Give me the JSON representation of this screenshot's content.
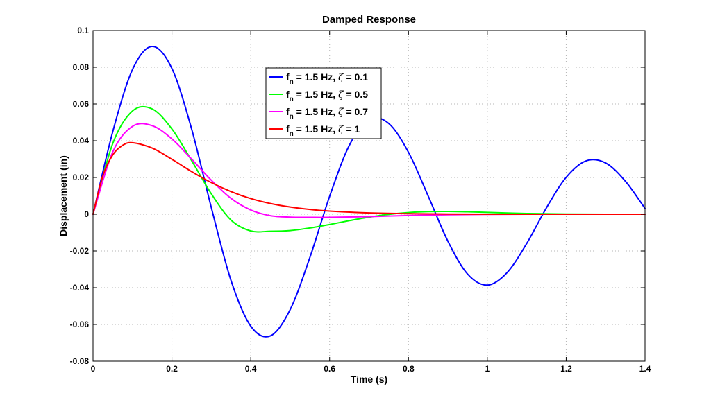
{
  "chart_data": {
    "type": "line",
    "title": "Damped Response",
    "xlabel": "Time (s)",
    "ylabel": "Displacement (in)",
    "xlim": [
      0,
      1.4
    ],
    "ylim": [
      -0.08,
      0.1
    ],
    "xticks": [
      0,
      0.2,
      0.4,
      0.6,
      0.8,
      1,
      1.2,
      1.4
    ],
    "xtick_labels": [
      "0",
      "0.2",
      "0.4",
      "0.6",
      "0.8",
      "1",
      "1.2",
      "1.4"
    ],
    "yticks": [
      -0.08,
      -0.06,
      -0.04,
      -0.02,
      0,
      0.02,
      0.04,
      0.06,
      0.08,
      0.1
    ],
    "ytick_labels": [
      "-0.08",
      "-0.06",
      "-0.04",
      "-0.02",
      "0",
      "0.02",
      "0.04",
      "0.06",
      "0.08",
      "0.1"
    ],
    "grid": true,
    "legend_position": "top-center",
    "series": [
      {
        "name": "f_n = 1.5 Hz, ζ = 0.1",
        "legend": {
          "main": "f",
          "sub": "n",
          "mid": " = 1.5 Hz, ",
          "greek": "ζ",
          "tail": " = 0.1"
        },
        "color": "#0000ff",
        "x": [
          0,
          0.05,
          0.1,
          0.15,
          0.2,
          0.25,
          0.3,
          0.35,
          0.4,
          0.45,
          0.5,
          0.55,
          0.6,
          0.65,
          0.7,
          0.75,
          0.8,
          0.85,
          0.9,
          0.95,
          1.0,
          1.05,
          1.1,
          1.15,
          1.2,
          1.25,
          1.3,
          1.35,
          1.4
        ],
        "y": [
          0,
          0.0449,
          0.0787,
          0.0913,
          0.0793,
          0.0464,
          0.0036,
          -0.0361,
          -0.0609,
          -0.0662,
          -0.0519,
          -0.0235,
          0.0097,
          0.0375,
          0.0516,
          0.0494,
          0.0337,
          0.0099,
          -0.0147,
          -0.0326,
          -0.0386,
          -0.0318,
          -0.0159,
          0.0035,
          0.0201,
          0.029,
          0.0279,
          0.018,
          0.0031
        ]
      },
      {
        "name": "f_n = 1.5 Hz, ζ = 0.5",
        "legend": {
          "main": "f",
          "sub": "n",
          "mid": " = 1.5 Hz, ",
          "greek": "ζ",
          "tail": " = 0.5"
        },
        "color": "#00ff00",
        "x": [
          0,
          0.05,
          0.1,
          0.15,
          0.2,
          0.25,
          0.3,
          0.35,
          0.4,
          0.45,
          0.5,
          0.55,
          0.6,
          0.65,
          0.7,
          0.75,
          0.8,
          0.85,
          0.9,
          0.95,
          1.0,
          1.1,
          1.2,
          1.3,
          1.4
        ],
        "y": [
          0,
          0.0385,
          0.0562,
          0.0573,
          0.0464,
          0.0292,
          0.0111,
          -0.0032,
          -0.0091,
          -0.0093,
          -0.0089,
          -0.0075,
          -0.0056,
          -0.0035,
          -0.0016,
          -0.0001,
          0.0009,
          0.0014,
          0.0015,
          0.0013,
          0.001,
          0.0004,
          0.0001,
          0,
          0
        ]
      },
      {
        "name": "f_n = 1.5 Hz, ζ = 0.7",
        "legend": {
          "main": "f",
          "sub": "n",
          "mid": " = 1.5 Hz, ",
          "greek": "ζ",
          "tail": " = 0.7"
        },
        "color": "#ff00ff",
        "x": [
          0,
          0.05,
          0.1,
          0.15,
          0.2,
          0.25,
          0.3,
          0.35,
          0.4,
          0.45,
          0.5,
          0.55,
          0.6,
          0.7,
          0.8,
          0.9,
          1.0,
          1.1,
          1.2,
          1.3,
          1.4
        ],
        "y": [
          0,
          0.0339,
          0.0478,
          0.0482,
          0.041,
          0.03,
          0.0185,
          0.0086,
          0.0023,
          -0.0008,
          -0.0016,
          -0.0017,
          -0.0017,
          -0.0013,
          -0.0007,
          -0.0003,
          -0.0001,
          0,
          0,
          0,
          0
        ]
      },
      {
        "name": "f_n = 1.5 Hz, ζ = 1",
        "legend": {
          "main": "f",
          "sub": "n",
          "mid": " = 1.5 Hz, ",
          "greek": "ζ",
          "tail": " = 1"
        },
        "color": "#ff0000",
        "x": [
          0,
          0.025,
          0.05,
          0.075,
          0.1,
          0.15,
          0.2,
          0.25,
          0.3,
          0.35,
          0.4,
          0.45,
          0.5,
          0.55,
          0.6,
          0.7,
          0.8,
          0.9,
          1.0,
          1.1,
          1.2,
          1.3,
          1.4
        ],
        "y": [
          0,
          0.021,
          0.0323,
          0.0375,
          0.0389,
          0.036,
          0.0299,
          0.0232,
          0.0172,
          0.0123,
          0.0085,
          0.0058,
          0.0039,
          0.0026,
          0.0017,
          0.0007,
          0.0003,
          0.0001,
          0,
          0,
          0,
          0,
          0
        ]
      }
    ]
  }
}
